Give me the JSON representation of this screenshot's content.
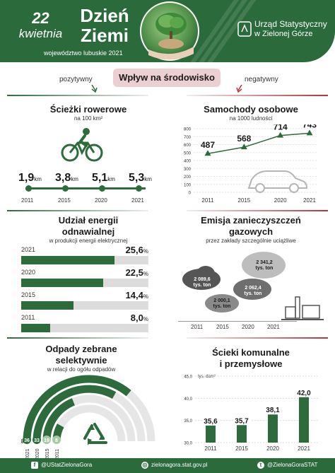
{
  "header": {
    "date_day": "22",
    "date_month": "kwietnia",
    "title_line1": "Dzień",
    "title_line2": "Ziemi",
    "subtitle": "województwo lubuskie 2021",
    "org_line1": "Urząd Statystyczny",
    "org_line2": "w Zielonej Górze"
  },
  "impact": {
    "title": "Wpływ na środowisko",
    "positive": "pozytywny",
    "negative": "negatywny"
  },
  "bike_paths": {
    "title": "Ścieżki rowerowe",
    "subtitle": "na 100 km²",
    "unit": "km",
    "items": [
      {
        "value": "1,9",
        "year": "2011"
      },
      {
        "value": "3,8",
        "year": "2015"
      },
      {
        "value": "5,1",
        "year": "2020"
      },
      {
        "value": "5,3",
        "year": "2021"
      }
    ]
  },
  "cars": {
    "title": "Samochody osobowe",
    "subtitle": "na 1000 ludności",
    "chart_data": {
      "type": "line",
      "categories": [
        "2011",
        "2015",
        "2020",
        "2021"
      ],
      "values": [
        487,
        568,
        714,
        743
      ],
      "value_labels": [
        "487",
        "568",
        "714",
        "743"
      ],
      "ylim": [
        0,
        800
      ],
      "yticks": [
        "0",
        "100",
        "200",
        "300",
        "400",
        "500",
        "600",
        "700",
        "800"
      ],
      "color": "#2e6b3c"
    }
  },
  "renewable": {
    "title_line1": "Udział energii",
    "title_line2": "odnawialnej",
    "subtitle": "w produkcji energii elektrycznej",
    "chart_data": {
      "type": "bar",
      "categories": [
        "2021",
        "2020",
        "2015",
        "2011"
      ],
      "values": [
        25.6,
        22.5,
        14.4,
        8.0
      ],
      "value_labels": [
        "25,6",
        "22,5",
        "14,4",
        "8,0"
      ],
      "unit": "%",
      "xlim": [
        0,
        35
      ]
    }
  },
  "emissions": {
    "title_line1": "Emisja zanieczyszczeń",
    "title_line2": "gazowych",
    "subtitle": "przez zakłady szczególnie uciążliwe",
    "unit": "tys. ton",
    "items": [
      {
        "year": "2011",
        "value": "2 089,6"
      },
      {
        "year": "2015",
        "value": "2 000,1"
      },
      {
        "year": "2020",
        "value": "2 062,4"
      },
      {
        "year": "2021",
        "value": "2 341,2"
      }
    ]
  },
  "waste": {
    "title_line1": "Odpady zebrane",
    "title_line2": "selektywnie",
    "subtitle": "w relacji do ogółu odpadów",
    "percent_sign": "%",
    "chart_data": {
      "type": "bar",
      "categories": [
        "2021",
        "2020",
        "2015",
        "2011"
      ],
      "values": [
        36,
        33,
        19,
        8
      ],
      "value_labels": [
        "36",
        "33",
        "19",
        "8"
      ],
      "unit": "%"
    }
  },
  "sewage": {
    "title_line1": "Ścieki komunalne",
    "title_line2": "i przemysłowe",
    "chart_data": {
      "type": "bar",
      "categories": [
        "2011",
        "2015",
        "2020",
        "2021"
      ],
      "values": [
        35.6,
        35.7,
        38.1,
        42.0
      ],
      "value_labels": [
        "35,6",
        "35,7",
        "38,1",
        "42,0"
      ],
      "ylim": [
        30,
        45
      ],
      "yticks": [
        "30,0",
        "35,0",
        "40,0",
        "45,0"
      ],
      "unit_label": "tys. dam³"
    }
  },
  "footer": {
    "facebook": "@UStatZielonaGora",
    "website": "zielonagora.stat.gov.pl",
    "twitter": "@ZielonaGoraSTAT"
  }
}
